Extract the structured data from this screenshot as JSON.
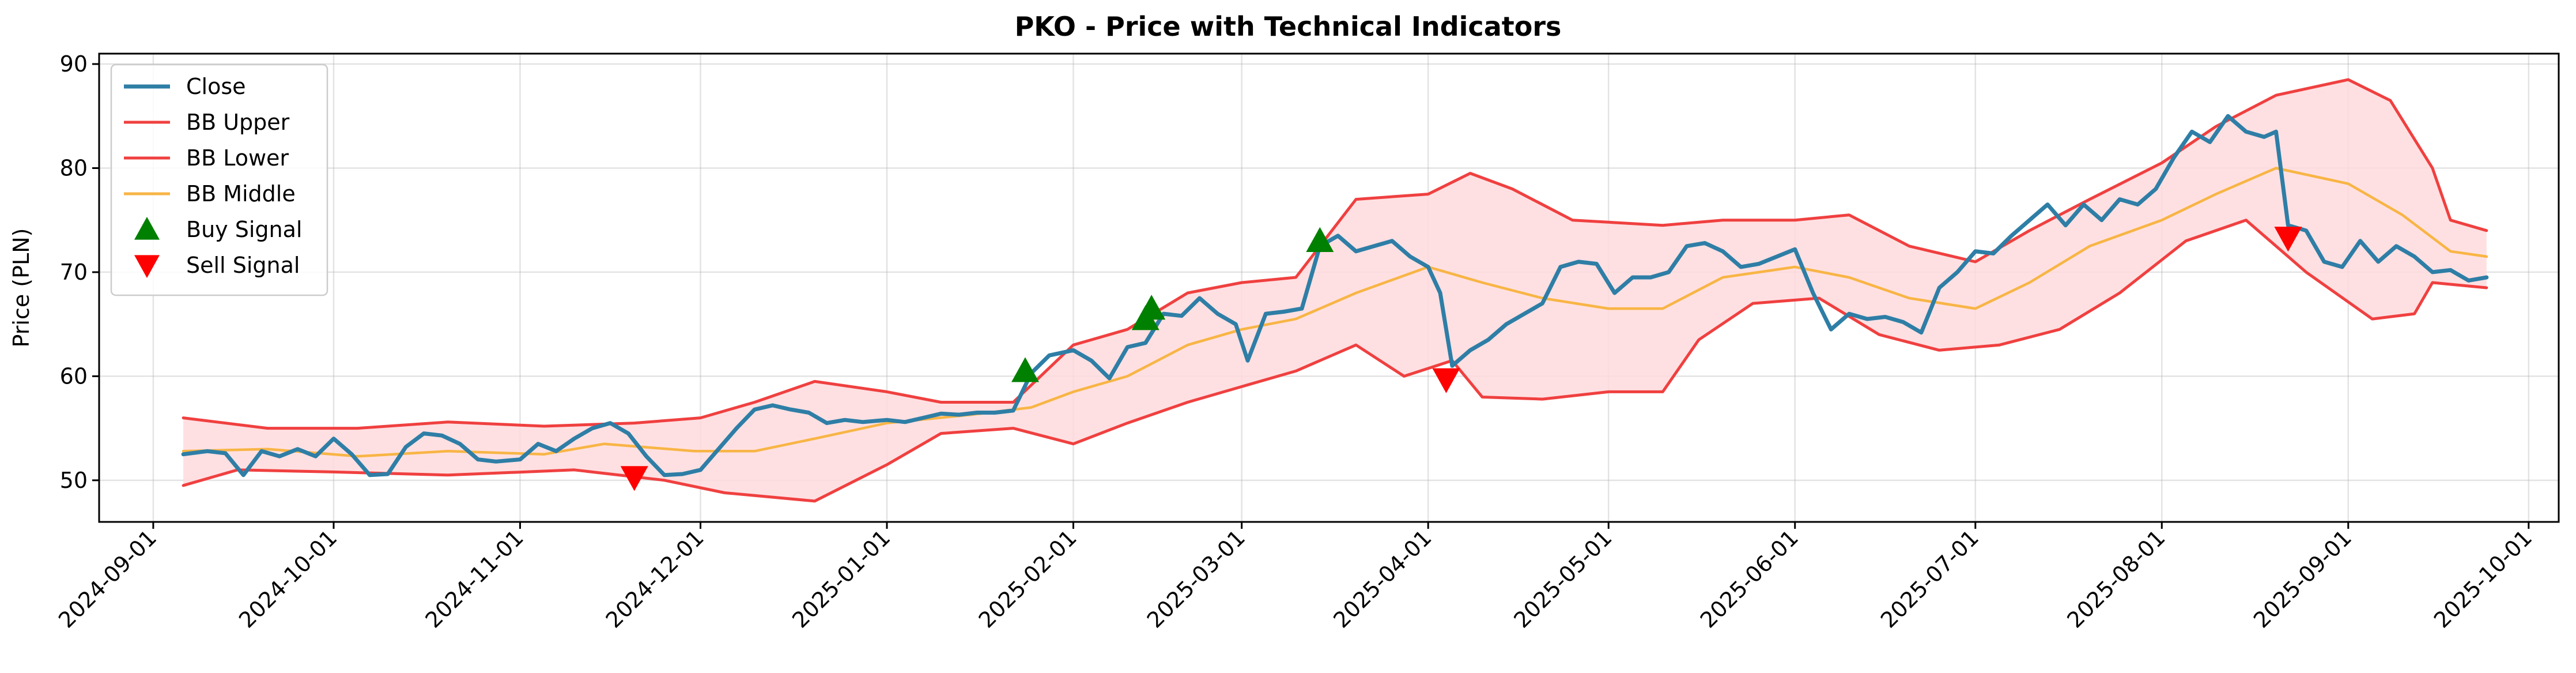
{
  "chart_data": {
    "type": "line",
    "title": "PKO - Price with Technical Indicators",
    "xlabel": "",
    "ylabel": "Price (PLN)",
    "ylim": [
      46,
      91
    ],
    "xlim": [
      "2024-08-23",
      "2025-10-06"
    ],
    "grid": true,
    "legend_position": "top-left",
    "y_ticks": [
      50,
      60,
      70,
      80,
      90
    ],
    "x_ticks": [
      "2024-09-01",
      "2024-10-01",
      "2024-11-01",
      "2024-12-01",
      "2025-01-01",
      "2025-02-01",
      "2025-03-01",
      "2025-04-01",
      "2025-05-01",
      "2025-06-01",
      "2025-07-01",
      "2025-08-01",
      "2025-09-01",
      "2025-10-01"
    ],
    "legend": [
      "Close",
      "BB Upper",
      "BB Lower",
      "BB Middle",
      "Buy Signal",
      "Sell Signal"
    ],
    "colors": {
      "close": "#2e7ea6",
      "bb_upper": "#f04040",
      "bb_lower": "#f04040",
      "bb_middle": "#f8b545",
      "band_fill": "#ffdadd",
      "buy": "#008000",
      "sell": "#ff0000"
    },
    "series": [
      {
        "name": "Close",
        "points": [
          [
            "2024-09-06",
            52.5
          ],
          [
            "2024-09-10",
            52.8
          ],
          [
            "2024-09-13",
            52.6
          ],
          [
            "2024-09-16",
            50.5
          ],
          [
            "2024-09-19",
            52.8
          ],
          [
            "2024-09-22",
            52.3
          ],
          [
            "2024-09-25",
            53.0
          ],
          [
            "2024-09-28",
            52.3
          ],
          [
            "2024-10-01",
            54.0
          ],
          [
            "2024-10-04",
            52.5
          ],
          [
            "2024-10-07",
            50.5
          ],
          [
            "2024-10-10",
            50.6
          ],
          [
            "2024-10-13",
            53.2
          ],
          [
            "2024-10-16",
            54.5
          ],
          [
            "2024-10-19",
            54.3
          ],
          [
            "2024-10-22",
            53.5
          ],
          [
            "2024-10-25",
            52.0
          ],
          [
            "2024-10-28",
            51.8
          ],
          [
            "2024-11-01",
            52.0
          ],
          [
            "2024-11-04",
            53.5
          ],
          [
            "2024-11-07",
            52.8
          ],
          [
            "2024-11-10",
            54.0
          ],
          [
            "2024-11-13",
            55.0
          ],
          [
            "2024-11-16",
            55.5
          ],
          [
            "2024-11-19",
            54.5
          ],
          [
            "2024-11-22",
            52.3
          ],
          [
            "2024-11-25",
            50.5
          ],
          [
            "2024-11-28",
            50.6
          ],
          [
            "2024-12-01",
            51.0
          ],
          [
            "2024-12-04",
            53.0
          ],
          [
            "2024-12-07",
            55.0
          ],
          [
            "2024-12-10",
            56.8
          ],
          [
            "2024-12-13",
            57.2
          ],
          [
            "2024-12-16",
            56.8
          ],
          [
            "2024-12-19",
            56.5
          ],
          [
            "2024-12-22",
            55.5
          ],
          [
            "2024-12-25",
            55.8
          ],
          [
            "2024-12-28",
            55.6
          ],
          [
            "2025-01-01",
            55.8
          ],
          [
            "2025-01-04",
            55.6
          ],
          [
            "2025-01-07",
            56.0
          ],
          [
            "2025-01-10",
            56.4
          ],
          [
            "2025-01-13",
            56.3
          ],
          [
            "2025-01-16",
            56.5
          ],
          [
            "2025-01-19",
            56.5
          ],
          [
            "2025-01-22",
            56.7
          ],
          [
            "2025-01-25",
            60.3
          ],
          [
            "2025-01-28",
            62.0
          ],
          [
            "2025-02-01",
            62.5
          ],
          [
            "2025-02-04",
            61.5
          ],
          [
            "2025-02-07",
            59.8
          ],
          [
            "2025-02-10",
            62.8
          ],
          [
            "2025-02-13",
            63.2
          ],
          [
            "2025-02-16",
            66.0
          ],
          [
            "2025-02-19",
            65.8
          ],
          [
            "2025-02-22",
            67.5
          ],
          [
            "2025-02-25",
            66.0
          ],
          [
            "2025-02-28",
            65.0
          ],
          [
            "2025-03-02",
            61.5
          ],
          [
            "2025-03-05",
            66.0
          ],
          [
            "2025-03-08",
            66.2
          ],
          [
            "2025-03-11",
            66.5
          ],
          [
            "2025-03-14",
            72.5
          ],
          [
            "2025-03-17",
            73.5
          ],
          [
            "2025-03-20",
            72.0
          ],
          [
            "2025-03-23",
            72.5
          ],
          [
            "2025-03-26",
            73.0
          ],
          [
            "2025-03-29",
            71.5
          ],
          [
            "2025-04-01",
            70.5
          ],
          [
            "2025-04-03",
            68.0
          ],
          [
            "2025-04-05",
            61.0
          ],
          [
            "2025-04-08",
            62.5
          ],
          [
            "2025-04-11",
            63.5
          ],
          [
            "2025-04-14",
            65.0
          ],
          [
            "2025-04-17",
            66.0
          ],
          [
            "2025-04-20",
            67.0
          ],
          [
            "2025-04-23",
            70.5
          ],
          [
            "2025-04-26",
            71.0
          ],
          [
            "2025-04-29",
            70.8
          ],
          [
            "2025-05-02",
            68.0
          ],
          [
            "2025-05-05",
            69.5
          ],
          [
            "2025-05-08",
            69.5
          ],
          [
            "2025-05-11",
            70.0
          ],
          [
            "2025-05-14",
            72.5
          ],
          [
            "2025-05-17",
            72.8
          ],
          [
            "2025-05-20",
            72.0
          ],
          [
            "2025-05-23",
            70.5
          ],
          [
            "2025-05-26",
            70.8
          ],
          [
            "2025-05-29",
            71.5
          ],
          [
            "2025-06-01",
            72.2
          ],
          [
            "2025-06-04",
            68.0
          ],
          [
            "2025-06-07",
            64.5
          ],
          [
            "2025-06-10",
            66.0
          ],
          [
            "2025-06-13",
            65.5
          ],
          [
            "2025-06-16",
            65.7
          ],
          [
            "2025-06-19",
            65.2
          ],
          [
            "2025-06-22",
            64.2
          ],
          [
            "2025-06-25",
            68.5
          ],
          [
            "2025-06-28",
            70.0
          ],
          [
            "2025-07-01",
            72.0
          ],
          [
            "2025-07-04",
            71.8
          ],
          [
            "2025-07-07",
            73.5
          ],
          [
            "2025-07-10",
            75.0
          ],
          [
            "2025-07-13",
            76.5
          ],
          [
            "2025-07-16",
            74.5
          ],
          [
            "2025-07-19",
            76.5
          ],
          [
            "2025-07-22",
            75.0
          ],
          [
            "2025-07-25",
            77.0
          ],
          [
            "2025-07-28",
            76.5
          ],
          [
            "2025-07-31",
            78.0
          ],
          [
            "2025-08-03",
            81.0
          ],
          [
            "2025-08-06",
            83.5
          ],
          [
            "2025-08-09",
            82.5
          ],
          [
            "2025-08-12",
            85.0
          ],
          [
            "2025-08-15",
            83.5
          ],
          [
            "2025-08-18",
            83.0
          ],
          [
            "2025-08-20",
            83.5
          ],
          [
            "2025-08-22",
            74.5
          ],
          [
            "2025-08-25",
            74.0
          ],
          [
            "2025-08-28",
            71.0
          ],
          [
            "2025-08-31",
            70.5
          ],
          [
            "2025-09-03",
            73.0
          ],
          [
            "2025-09-06",
            71.0
          ],
          [
            "2025-09-09",
            72.5
          ],
          [
            "2025-09-12",
            71.5
          ],
          [
            "2025-09-15",
            70.0
          ],
          [
            "2025-09-18",
            70.2
          ],
          [
            "2025-09-21",
            69.2
          ],
          [
            "2025-09-24",
            69.5
          ]
        ]
      },
      {
        "name": "BB Upper",
        "points": [
          [
            "2024-09-06",
            56.0
          ],
          [
            "2024-09-20",
            55.0
          ],
          [
            "2024-10-05",
            55.0
          ],
          [
            "2024-10-20",
            55.6
          ],
          [
            "2024-11-05",
            55.2
          ],
          [
            "2024-11-20",
            55.5
          ],
          [
            "2024-12-01",
            56.0
          ],
          [
            "2024-12-10",
            57.5
          ],
          [
            "2024-12-20",
            59.5
          ],
          [
            "2025-01-01",
            58.5
          ],
          [
            "2025-01-10",
            57.5
          ],
          [
            "2025-01-22",
            57.5
          ],
          [
            "2025-02-01",
            63.0
          ],
          [
            "2025-02-10",
            64.5
          ],
          [
            "2025-02-20",
            68.0
          ],
          [
            "2025-03-01",
            69.0
          ],
          [
            "2025-03-10",
            69.5
          ],
          [
            "2025-03-20",
            77.0
          ],
          [
            "2025-04-01",
            77.5
          ],
          [
            "2025-04-08",
            79.5
          ],
          [
            "2025-04-15",
            78.0
          ],
          [
            "2025-04-25",
            75.0
          ],
          [
            "2025-05-10",
            74.5
          ],
          [
            "2025-05-20",
            75.0
          ],
          [
            "2025-06-01",
            75.0
          ],
          [
            "2025-06-10",
            75.5
          ],
          [
            "2025-06-20",
            72.5
          ],
          [
            "2025-07-01",
            71.0
          ],
          [
            "2025-07-10",
            74.0
          ],
          [
            "2025-07-20",
            77.0
          ],
          [
            "2025-08-01",
            80.5
          ],
          [
            "2025-08-10",
            84.0
          ],
          [
            "2025-08-20",
            87.0
          ],
          [
            "2025-09-01",
            88.5
          ],
          [
            "2025-09-08",
            86.5
          ],
          [
            "2025-09-15",
            80.0
          ],
          [
            "2025-09-18",
            75.0
          ],
          [
            "2025-09-24",
            74.0
          ]
        ]
      },
      {
        "name": "BB Lower",
        "points": [
          [
            "2024-09-06",
            49.5
          ],
          [
            "2024-09-15",
            51.0
          ],
          [
            "2024-10-01",
            50.8
          ],
          [
            "2024-10-20",
            50.5
          ],
          [
            "2024-11-10",
            51.0
          ],
          [
            "2024-11-25",
            50.0
          ],
          [
            "2024-12-05",
            48.8
          ],
          [
            "2024-12-20",
            48.0
          ],
          [
            "2025-01-01",
            51.5
          ],
          [
            "2025-01-10",
            54.5
          ],
          [
            "2025-01-22",
            55.0
          ],
          [
            "2025-02-01",
            53.5
          ],
          [
            "2025-02-10",
            55.5
          ],
          [
            "2025-02-20",
            57.5
          ],
          [
            "2025-03-01",
            59.0
          ],
          [
            "2025-03-10",
            60.5
          ],
          [
            "2025-03-20",
            63.0
          ],
          [
            "2025-03-28",
            60.0
          ],
          [
            "2025-04-05",
            61.5
          ],
          [
            "2025-04-10",
            58.0
          ],
          [
            "2025-04-20",
            57.8
          ],
          [
            "2025-05-01",
            58.5
          ],
          [
            "2025-05-10",
            58.5
          ],
          [
            "2025-05-16",
            63.5
          ],
          [
            "2025-05-25",
            67.0
          ],
          [
            "2025-06-05",
            67.5
          ],
          [
            "2025-06-15",
            64.0
          ],
          [
            "2025-06-25",
            62.5
          ],
          [
            "2025-07-05",
            63.0
          ],
          [
            "2025-07-15",
            64.5
          ],
          [
            "2025-07-25",
            68.0
          ],
          [
            "2025-08-05",
            73.0
          ],
          [
            "2025-08-15",
            75.0
          ],
          [
            "2025-08-25",
            70.0
          ],
          [
            "2025-09-05",
            65.5
          ],
          [
            "2025-09-12",
            66.0
          ],
          [
            "2025-09-15",
            69.0
          ],
          [
            "2025-09-24",
            68.5
          ]
        ]
      },
      {
        "name": "BB Middle",
        "points": [
          [
            "2024-09-06",
            52.8
          ],
          [
            "2024-09-20",
            53.0
          ],
          [
            "2024-10-05",
            52.3
          ],
          [
            "2024-10-20",
            52.8
          ],
          [
            "2024-11-05",
            52.5
          ],
          [
            "2024-11-15",
            53.5
          ],
          [
            "2024-11-30",
            52.8
          ],
          [
            "2024-12-10",
            52.8
          ],
          [
            "2024-12-20",
            54.0
          ],
          [
            "2025-01-01",
            55.5
          ],
          [
            "2025-01-15",
            56.3
          ],
          [
            "2025-01-25",
            57.0
          ],
          [
            "2025-02-01",
            58.5
          ],
          [
            "2025-02-10",
            60.0
          ],
          [
            "2025-02-20",
            63.0
          ],
          [
            "2025-03-01",
            64.5
          ],
          [
            "2025-03-10",
            65.5
          ],
          [
            "2025-03-20",
            68.0
          ],
          [
            "2025-04-01",
            70.5
          ],
          [
            "2025-04-10",
            69.0
          ],
          [
            "2025-04-20",
            67.5
          ],
          [
            "2025-05-01",
            66.5
          ],
          [
            "2025-05-10",
            66.5
          ],
          [
            "2025-05-20",
            69.5
          ],
          [
            "2025-06-01",
            70.5
          ],
          [
            "2025-06-10",
            69.5
          ],
          [
            "2025-06-20",
            67.5
          ],
          [
            "2025-07-01",
            66.5
          ],
          [
            "2025-07-10",
            69.0
          ],
          [
            "2025-07-20",
            72.5
          ],
          [
            "2025-08-01",
            75.0
          ],
          [
            "2025-08-10",
            77.5
          ],
          [
            "2025-08-20",
            80.0
          ],
          [
            "2025-09-01",
            78.5
          ],
          [
            "2025-09-10",
            75.5
          ],
          [
            "2025-09-18",
            72.0
          ],
          [
            "2025-09-24",
            71.5
          ]
        ]
      },
      {
        "name": "Buy Signal",
        "points": [
          [
            "2025-01-24",
            60.5
          ],
          [
            "2025-02-13",
            65.5
          ],
          [
            "2025-02-14",
            66.5
          ],
          [
            "2025-03-14",
            73.0
          ]
        ]
      },
      {
        "name": "Sell Signal",
        "points": [
          [
            "2024-11-20",
            50.3
          ],
          [
            "2025-04-04",
            59.7
          ],
          [
            "2025-08-22",
            73.3
          ]
        ]
      }
    ]
  }
}
